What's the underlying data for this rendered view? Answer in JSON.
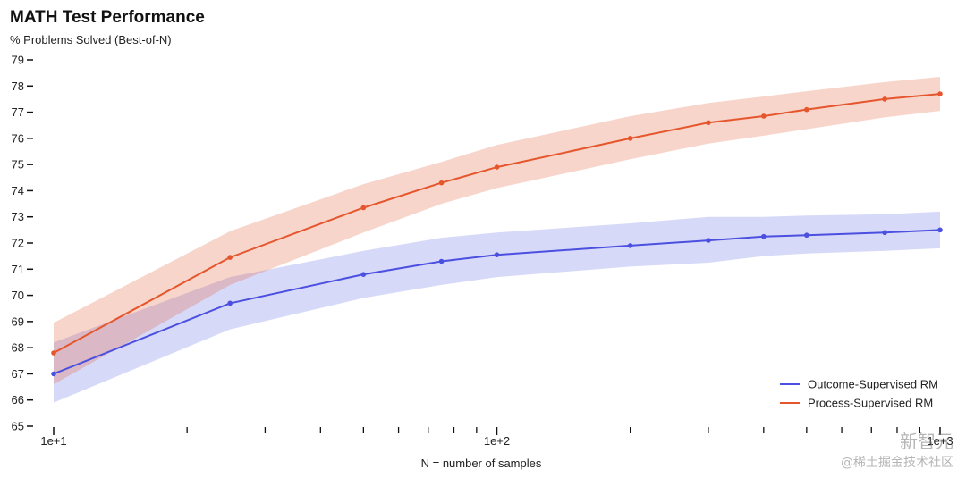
{
  "chart_data": {
    "type": "line",
    "title": "MATH Test Performance",
    "ylabel": "% Problems Solved (Best-of-N)",
    "xlabel": "N = number of samples",
    "x_scale": "log",
    "xlim": [
      10,
      1000
    ],
    "ylim": [
      65,
      79
    ],
    "y_ticks": [
      65,
      66,
      67,
      68,
      69,
      70,
      71,
      72,
      73,
      74,
      75,
      76,
      77,
      78,
      79
    ],
    "x_tick_labels": [
      {
        "value": 10,
        "label": "1e+1"
      },
      {
        "value": 100,
        "label": "1e+2"
      },
      {
        "value": 1000,
        "label": "1e+3"
      }
    ],
    "x_minor_ticks": [
      20,
      30,
      40,
      50,
      60,
      70,
      80,
      90,
      200,
      300,
      400,
      500,
      600,
      700,
      800,
      900
    ],
    "legend_position": "bottom-right",
    "grid": false,
    "x": [
      10,
      25,
      50,
      75,
      100,
      200,
      300,
      400,
      500,
      750,
      1000
    ],
    "series": [
      {
        "name": "Outcome-Supervised RM",
        "color": "#4b50e0",
        "values": [
          67.0,
          69.7,
          70.8,
          71.3,
          71.55,
          71.9,
          72.1,
          72.25,
          72.3,
          72.4,
          72.5
        ],
        "lower": [
          65.9,
          68.7,
          69.9,
          70.4,
          70.7,
          71.1,
          71.25,
          71.5,
          71.6,
          71.7,
          71.8
        ],
        "upper": [
          68.2,
          70.7,
          71.7,
          72.2,
          72.4,
          72.75,
          73.0,
          73.0,
          73.05,
          73.1,
          73.2
        ]
      },
      {
        "name": "Process-Supervised RM",
        "color": "#e5562d",
        "values": [
          67.8,
          71.45,
          73.35,
          74.3,
          74.9,
          76.0,
          76.6,
          76.85,
          77.1,
          77.5,
          77.7
        ],
        "lower": [
          66.6,
          70.4,
          72.4,
          73.5,
          74.1,
          75.2,
          75.8,
          76.1,
          76.35,
          76.8,
          77.05
        ],
        "upper": [
          68.95,
          72.45,
          74.25,
          75.1,
          75.75,
          76.85,
          77.35,
          77.6,
          77.8,
          78.15,
          78.35
        ]
      }
    ]
  },
  "watermark": {
    "line1": "新智元",
    "line2": "@稀土掘金技术社区"
  }
}
